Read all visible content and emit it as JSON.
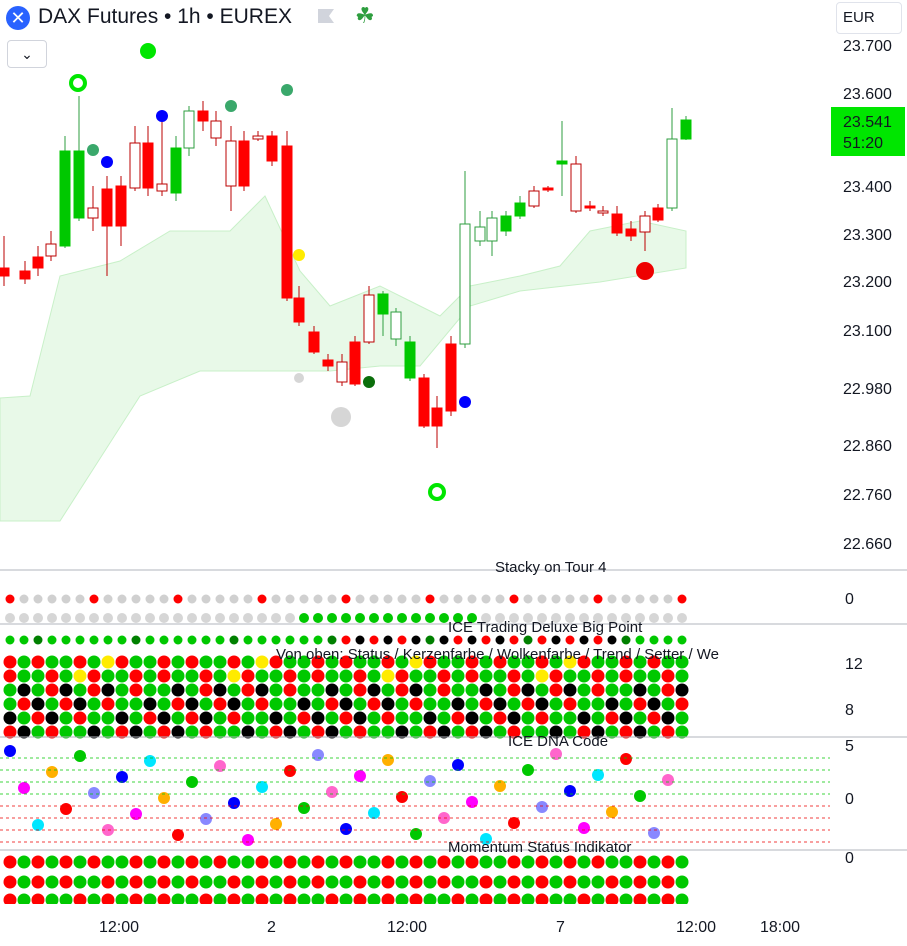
{
  "header": {
    "title": "DAX Futures • 1h • EUREX",
    "currency": "EUR",
    "collapse_glyph": "⌄",
    "symbol_icon": "close-x-icon"
  },
  "price_axis": {
    "ticks": [
      "23.700",
      "23.600",
      "23.400",
      "23.300",
      "23.200",
      "23.100",
      "22.980",
      "22.860",
      "22.760",
      "22.660"
    ],
    "last_price": "23.541",
    "countdown": "51:20",
    "last_price_color": "#00e600"
  },
  "time_axis": {
    "ticks": [
      "12:00",
      "2",
      "12:00",
      "7",
      "12:00",
      "18:00"
    ]
  },
  "panes": {
    "p1": {
      "title": "Stacky on Tour 4",
      "scale": [
        "0"
      ]
    },
    "p2": {
      "title": "ICE Trading Deluxe Big Point",
      "subtitle": "Von oben: Status / Kerzenfarbe / Wolkenfarbe / Trend / Setter / We",
      "scale": [
        "12",
        "8"
      ]
    },
    "p3": {
      "title": "ICE DNA Code",
      "scale": [
        "5",
        "0"
      ]
    },
    "p4": {
      "title": "Momentum Status Indikator",
      "scale": [
        "0"
      ]
    }
  },
  "colors": {
    "bull": "#00c800",
    "bear": "#ff0000",
    "cloud": "#e8f9e8",
    "accent": "#2962ff"
  }
}
